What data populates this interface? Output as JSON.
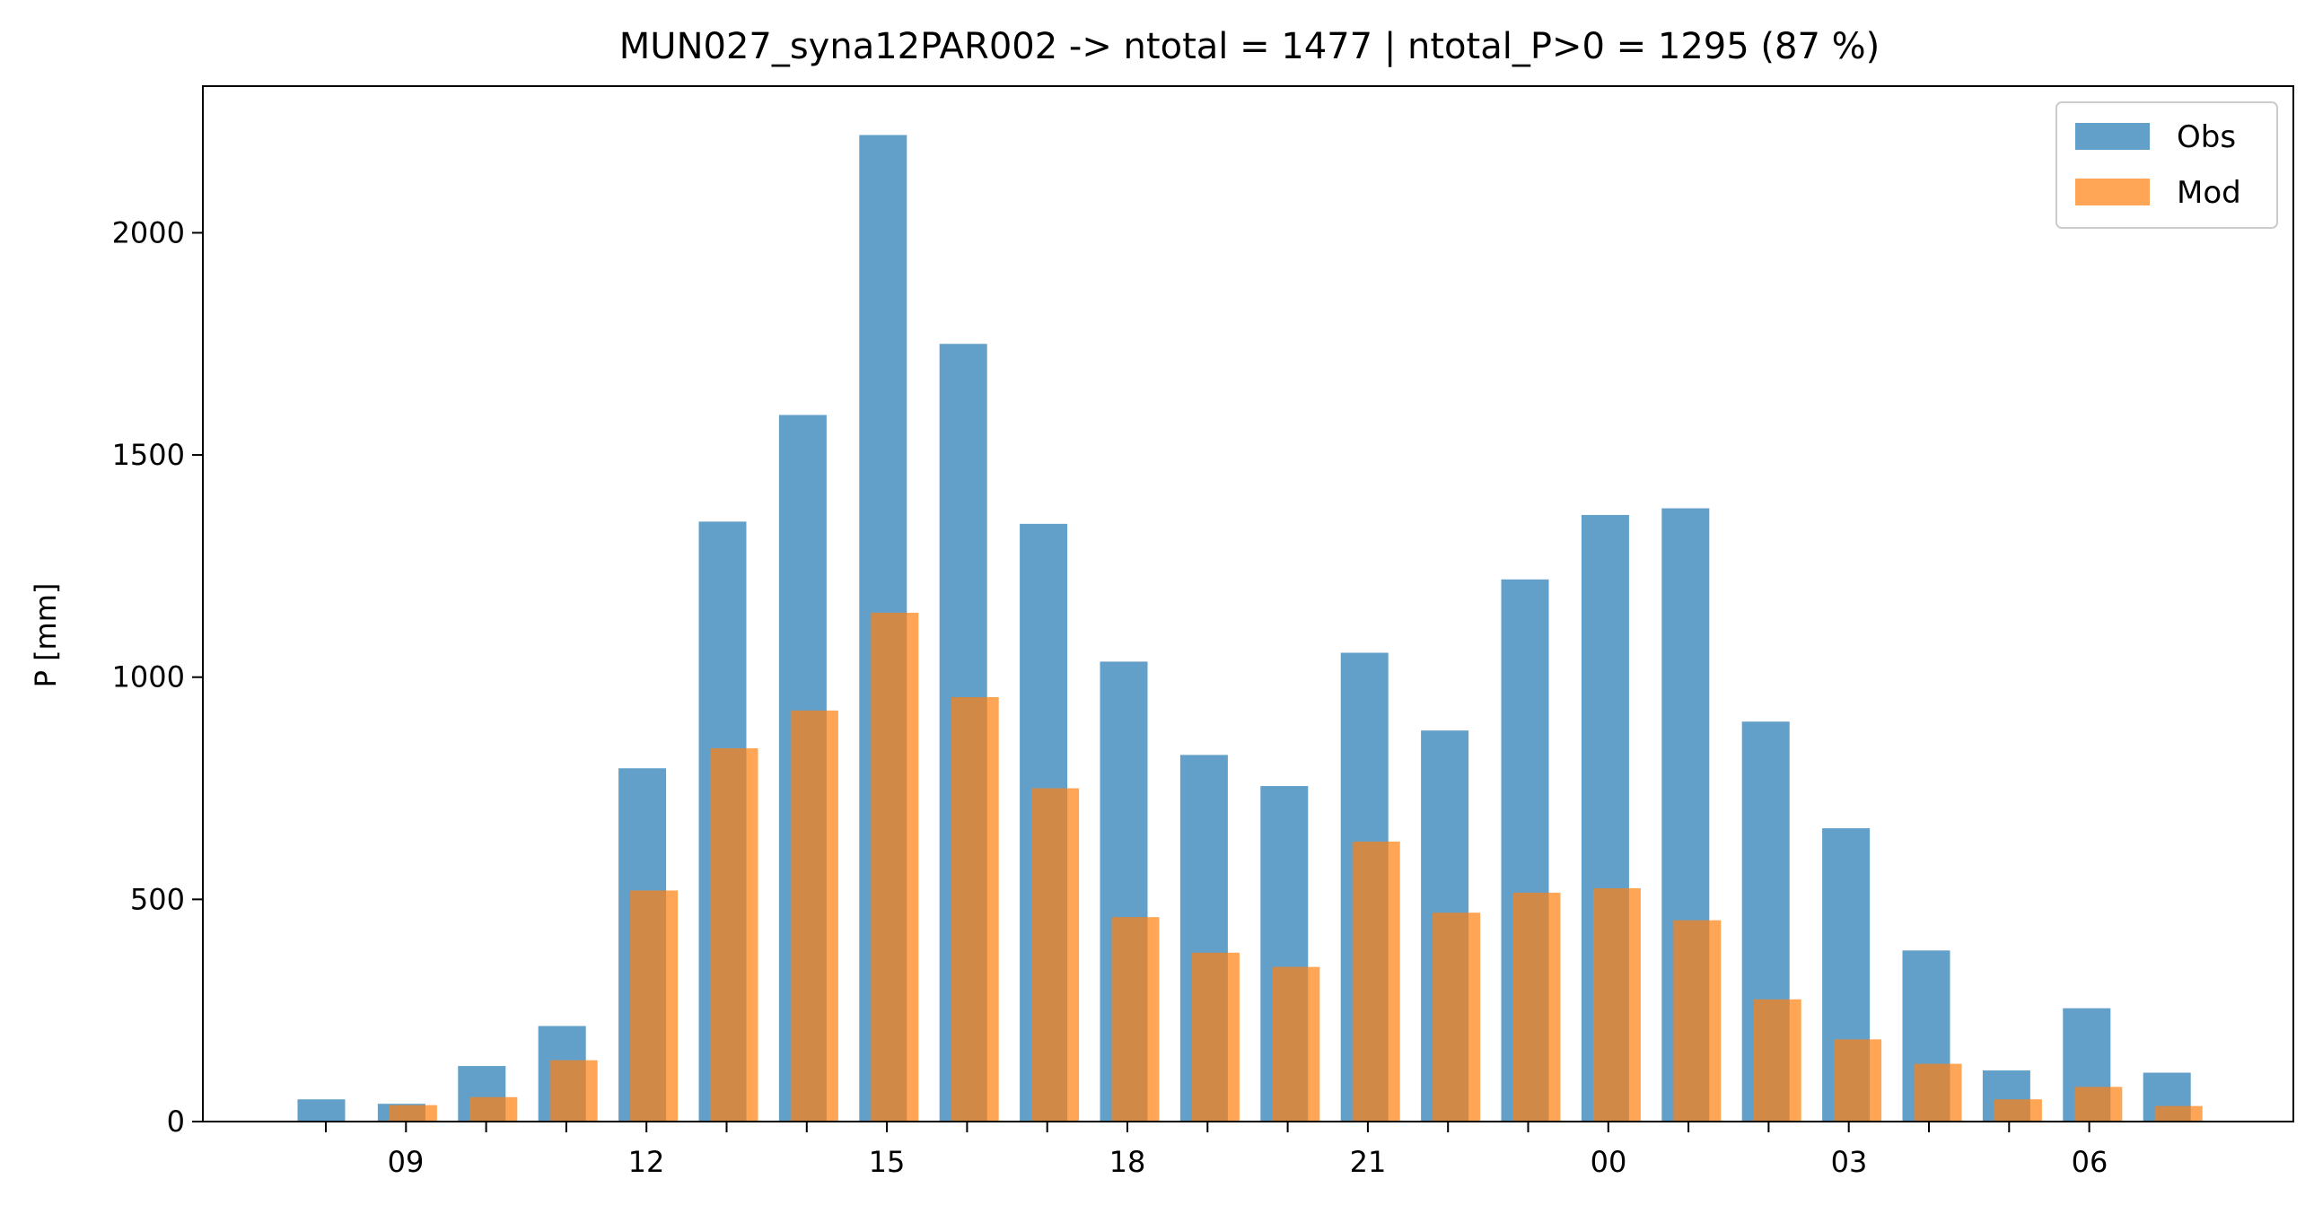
{
  "chart_data": {
    "type": "bar",
    "title": "MUN027_syna12PAR002 -> ntotal = 1477 | ntotal_P>0 = 1295 (87 %)",
    "xlabel": "",
    "ylabel": "P [mm]",
    "ylim": [
      0,
      2330
    ],
    "yticks": [
      0,
      500,
      1000,
      1500,
      2000
    ],
    "x_hours": [
      8,
      9,
      10,
      11,
      12,
      13,
      14,
      15,
      16,
      17,
      18,
      19,
      20,
      21,
      22,
      23,
      0,
      1,
      2,
      3,
      4,
      5,
      6,
      7
    ],
    "xtick_labels": [
      "09",
      "12",
      "15",
      "18",
      "21",
      "00",
      "03",
      "06"
    ],
    "legend_position": "top-right",
    "grid": false,
    "series": [
      {
        "name": "Obs",
        "color": "#1f77b4",
        "opacity": 0.7,
        "values": [
          50,
          40,
          125,
          215,
          795,
          1350,
          1590,
          2220,
          1750,
          1345,
          1035,
          825,
          755,
          1055,
          880,
          1220,
          1365,
          1380,
          900,
          660,
          385,
          115,
          255,
          110
        ]
      },
      {
        "name": "Mod",
        "color": "#ff7f0e",
        "opacity": 0.7,
        "values": [
          0,
          37,
          55,
          138,
          520,
          840,
          925,
          1145,
          955,
          750,
          460,
          380,
          348,
          630,
          470,
          515,
          525,
          453,
          275,
          185,
          130,
          50,
          78,
          35
        ]
      }
    ]
  }
}
